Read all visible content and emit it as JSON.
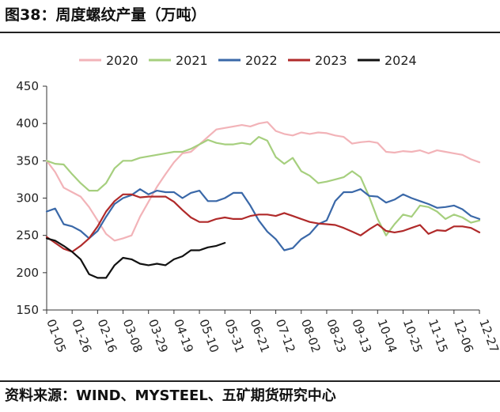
{
  "figure": {
    "title": "图38：周度螺纹产量（万吨）",
    "source": "资料来源：WIND、MYSTEEL、五矿期货研究中心"
  },
  "chart_data": {
    "type": "line",
    "title": "周度螺纹产量（万吨）",
    "xlabel": "",
    "ylabel": "万吨",
    "ylim": [
      150,
      450
    ],
    "yticks": [
      150,
      200,
      250,
      300,
      350,
      400,
      450
    ],
    "xticks": [
      "01-05",
      "01-26",
      "02-16",
      "03-08",
      "03-29",
      "04-19",
      "05-10",
      "05-31",
      "06-21",
      "07-12",
      "08-02",
      "08-23",
      "09-13",
      "10-04",
      "10-25",
      "11-15",
      "12-06",
      "12-27"
    ],
    "x_range": [
      0,
      51
    ],
    "legend_position": "top",
    "series": [
      {
        "name": "2020",
        "color": "#f2b3b8",
        "values": [
          350,
          335,
          314,
          308,
          302,
          288,
          270,
          252,
          243,
          246,
          250,
          275,
          295,
          315,
          332,
          348,
          360,
          362,
          372,
          382,
          392,
          394,
          396,
          398,
          396,
          400,
          402,
          390,
          386,
          384,
          388,
          386,
          388,
          387,
          384,
          382,
          373,
          375,
          376,
          374,
          362,
          361,
          363,
          362,
          364,
          360,
          364,
          362,
          360,
          358,
          352,
          348
        ]
      },
      {
        "name": "2021",
        "color": "#a6cf7e",
        "values": [
          350,
          346,
          345,
          332,
          320,
          310,
          310,
          320,
          340,
          350,
          350,
          354,
          356,
          358,
          360,
          362,
          362,
          366,
          372,
          378,
          374,
          372,
          372,
          374,
          372,
          382,
          377,
          355,
          346,
          354,
          336,
          330,
          320,
          322,
          325,
          328,
          336,
          328,
          302,
          272,
          250,
          265,
          278,
          275,
          290,
          288,
          282,
          272,
          278,
          274,
          267,
          270
        ]
      },
      {
        "name": "2022",
        "color": "#3a68a8",
        "values": [
          282,
          286,
          265,
          262,
          256,
          246,
          256,
          275,
          292,
          300,
          304,
          312,
          305,
          310,
          308,
          308,
          300,
          307,
          310,
          296,
          296,
          300,
          307,
          307,
          290,
          270,
          255,
          245,
          230,
          233,
          245,
          252,
          265,
          270,
          296,
          308,
          308,
          312,
          303,
          302,
          294,
          298,
          305,
          300,
          296,
          292,
          287,
          288,
          290,
          285,
          276,
          272
        ]
      },
      {
        "name": "2023",
        "color": "#b02a2a",
        "values": [
          248,
          240,
          232,
          228,
          236,
          246,
          262,
          282,
          296,
          305,
          305,
          301,
          302,
          302,
          302,
          295,
          284,
          274,
          268,
          268,
          272,
          274,
          272,
          272,
          276,
          278,
          278,
          276,
          280,
          276,
          272,
          268,
          266,
          265,
          264,
          260,
          255,
          250,
          258,
          265,
          256,
          254,
          256,
          260,
          264,
          252,
          257,
          256,
          262,
          262,
          260,
          254
        ]
      },
      {
        "name": "2024",
        "color": "#111111",
        "values": [
          246,
          243,
          236,
          228,
          218,
          198,
          193,
          193,
          210,
          220,
          218,
          212,
          210,
          212,
          210,
          218,
          222,
          230,
          230,
          234,
          236,
          240
        ]
      }
    ]
  }
}
